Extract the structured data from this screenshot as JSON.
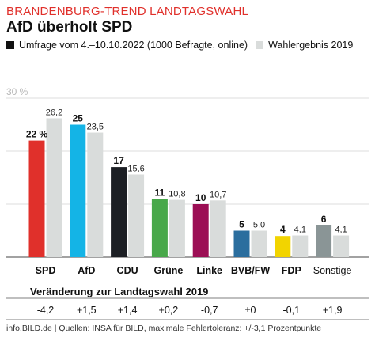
{
  "kicker": "BRANDENBURG-TREND LANDTAGSWAHL",
  "headline": "AfD überholt SPD",
  "legend": {
    "poll_label": "Umfrage vom 4.–10.10.2022 (1000 Befragte, online)",
    "result_label": "Wahlergebnis 2019"
  },
  "changes_title": "Veränderung zur Landtagswahl 2019",
  "footer": "info.BILD.de | Quellen: INSA für BILD, maximale Fehlertoleranz: +/-3,1 Prozentpunkte",
  "colors": {
    "result_bar": "#d9dcdb",
    "gridline": "#d0d0d0",
    "axis_label": "#b8b8b8",
    "poll_legend": "#111111"
  },
  "chart_data": {
    "type": "bar",
    "ylim": [
      0,
      30
    ],
    "y_tick_label": "30 %",
    "grid": true,
    "categories": [
      "SPD",
      "AfD",
      "CDU",
      "Grüne",
      "Linke",
      "BVB/FW",
      "FDP",
      "Sonstige"
    ],
    "party_colors": [
      "#e0302b",
      "#14b4e6",
      "#1c1f24",
      "#48a84a",
      "#9c0f55",
      "#2b6e9e",
      "#f2d400",
      "#8a9596"
    ],
    "series": [
      {
        "name": "Umfrage vom 4.–10.10.2022 (1000 Befragte, online)",
        "values": [
          22,
          25,
          17,
          11,
          10,
          5,
          4,
          6
        ],
        "labels": [
          "22 %",
          "25",
          "17",
          "11",
          "10",
          "5",
          "4",
          "6"
        ]
      },
      {
        "name": "Wahlergebnis 2019",
        "values": [
          26.2,
          23.5,
          15.6,
          10.8,
          10.7,
          5.0,
          4.1,
          4.1
        ],
        "labels": [
          "26,2",
          "23,5",
          "15,6",
          "10,8",
          "10,7",
          "5,0",
          "4,1",
          "4,1"
        ]
      }
    ],
    "changes": [
      "-4,2",
      "+1,5",
      "+1,4",
      "+0,2",
      "-0,7",
      "±0",
      "-0,1",
      "+1,9"
    ]
  }
}
